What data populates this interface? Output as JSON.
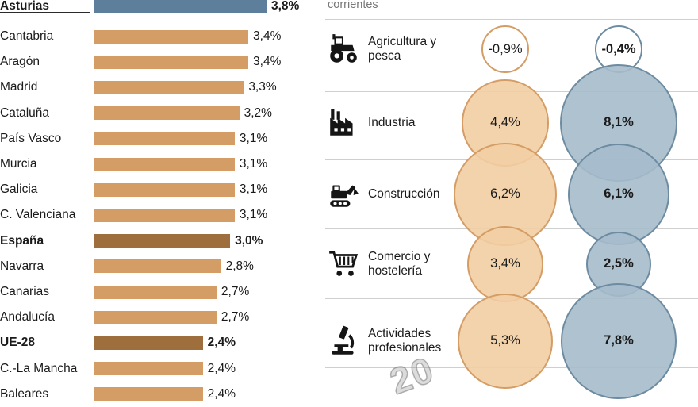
{
  "header": {
    "note": "corrientes"
  },
  "watermark": "20",
  "colors": {
    "bar_tan": "#d59d66",
    "bar_blue": "#5d7f9c",
    "bar_brown": "#9e6e3c",
    "bubble_tan_fill": "rgba(242,206,163,0.9)",
    "bubble_tan_stroke": "#d59d66",
    "bubble_blue_fill": "rgba(166,187,203,0.9)",
    "bubble_blue_stroke": "#6d8ba1",
    "separator": "#cfcfcf",
    "text": "#1a1a1a"
  },
  "chart_data": [
    {
      "type": "bar",
      "orientation": "horizontal",
      "value_suffix": "%",
      "xlim": [
        0,
        3.8
      ],
      "rows": [
        {
          "name": "Asturias",
          "value": 3.8,
          "label": "3,8%",
          "emphasis": true,
          "bar_color": "blue"
        },
        {
          "name": "Cantabria",
          "value": 3.4,
          "label": "3,4%",
          "emphasis": false,
          "bar_color": "tan"
        },
        {
          "name": "Aragón",
          "value": 3.4,
          "label": "3,4%",
          "emphasis": false,
          "bar_color": "tan"
        },
        {
          "name": "Madrid",
          "value": 3.3,
          "label": "3,3%",
          "emphasis": false,
          "bar_color": "tan"
        },
        {
          "name": "Cataluña",
          "value": 3.2,
          "label": "3,2%",
          "emphasis": false,
          "bar_color": "tan"
        },
        {
          "name": "País Vasco",
          "value": 3.1,
          "label": "3,1%",
          "emphasis": false,
          "bar_color": "tan"
        },
        {
          "name": "Murcia",
          "value": 3.1,
          "label": "3,1%",
          "emphasis": false,
          "bar_color": "tan"
        },
        {
          "name": "Galicia",
          "value": 3.1,
          "label": "3,1%",
          "emphasis": false,
          "bar_color": "tan"
        },
        {
          "name": "C. Valenciana",
          "value": 3.1,
          "label": "3,1%",
          "emphasis": false,
          "bar_color": "tan"
        },
        {
          "name": "España",
          "value": 3.0,
          "label": "3,0%",
          "emphasis": true,
          "bar_color": "brown"
        },
        {
          "name": "Navarra",
          "value": 2.8,
          "label": "2,8%",
          "emphasis": false,
          "bar_color": "tan"
        },
        {
          "name": "Canarias",
          "value": 2.7,
          "label": "2,7%",
          "emphasis": false,
          "bar_color": "tan"
        },
        {
          "name": "Andalucía",
          "value": 2.7,
          "label": "2,7%",
          "emphasis": false,
          "bar_color": "tan"
        },
        {
          "name": "UE-28",
          "value": 2.4,
          "label": "2,4%",
          "emphasis": true,
          "bar_color": "brown"
        },
        {
          "name": "C.-La Mancha",
          "value": 2.4,
          "label": "2,4%",
          "emphasis": false,
          "bar_color": "tan"
        },
        {
          "name": "Baleares",
          "value": 2.4,
          "label": "2,4%",
          "emphasis": false,
          "bar_color": "tan"
        }
      ]
    },
    {
      "type": "bubble",
      "value_suffix": "%",
      "rows": [
        {
          "sector": "Agricultura y pesca",
          "icon": "tractor-icon",
          "values": [
            -0.9,
            -0.4
          ],
          "labels": [
            "-0,9%",
            "-0,4%"
          ]
        },
        {
          "sector": "Industria",
          "icon": "factory-icon",
          "values": [
            4.4,
            8.1
          ],
          "labels": [
            "4,4%",
            "8,1%"
          ]
        },
        {
          "sector": "Construcción",
          "icon": "excavator-icon",
          "values": [
            6.2,
            6.1
          ],
          "labels": [
            "6,2%",
            "6,1%"
          ]
        },
        {
          "sector": "Comercio y hostelería",
          "icon": "cart-icon",
          "values": [
            3.4,
            2.5
          ],
          "labels": [
            "3,4%",
            "2,5%"
          ]
        },
        {
          "sector": "Actividades profesionales",
          "icon": "microscope-icon",
          "values": [
            5.3,
            7.8
          ],
          "labels": [
            "5,3%",
            "7,8%"
          ]
        }
      ]
    }
  ]
}
